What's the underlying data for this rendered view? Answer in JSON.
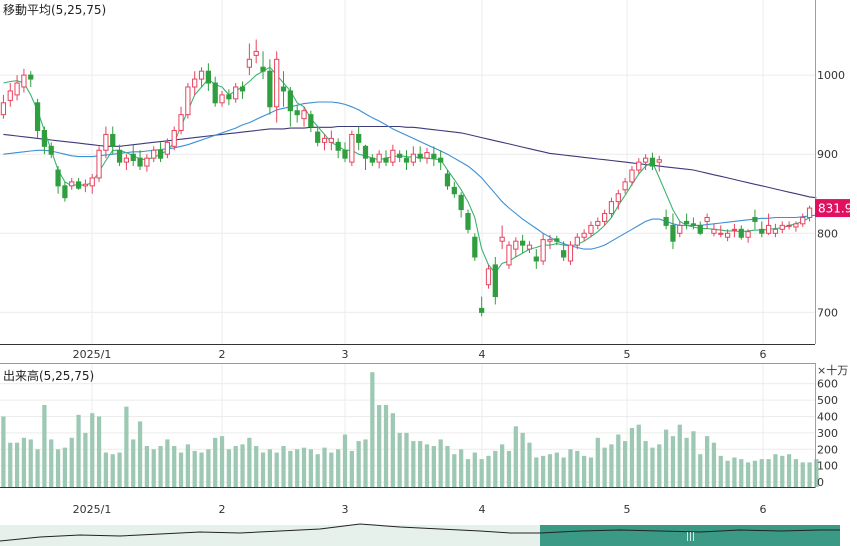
{
  "chart_data": [
    {
      "type": "candlestick",
      "title": "移動平均(5,25,75)",
      "x_tick_labels": [
        "2025/1",
        "2",
        "3",
        "4",
        "5",
        "6"
      ],
      "y_tick_labels": [
        "1000",
        "900",
        "800",
        "700"
      ],
      "ylim": [
        660,
        1095
      ],
      "grid": true,
      "last_price_label": "831.9",
      "colors": {
        "up": "#e8425e",
        "down": "#2e9e3e",
        "ma5": "#3cb371",
        "ma25": "#3a8fd8",
        "ma75": "#3d3a7a",
        "price_tag": "#e0115f"
      },
      "ohlc": [
        [
          950,
          975,
          945,
          965
        ],
        [
          968,
          990,
          960,
          980
        ],
        [
          975,
          1000,
          968,
          990
        ],
        [
          985,
          1008,
          978,
          1000
        ],
        [
          1000,
          1005,
          985,
          995
        ],
        [
          965,
          970,
          920,
          930
        ],
        [
          930,
          935,
          900,
          910
        ],
        [
          910,
          915,
          895,
          900
        ],
        [
          880,
          885,
          850,
          860
        ],
        [
          860,
          865,
          840,
          845
        ],
        [
          860,
          870,
          855,
          865
        ],
        [
          865,
          870,
          855,
          857
        ],
        [
          860,
          868,
          852,
          862
        ],
        [
          860,
          875,
          850,
          870
        ],
        [
          870,
          910,
          865,
          905
        ],
        [
          905,
          935,
          895,
          925
        ],
        [
          925,
          935,
          900,
          910
        ],
        [
          905,
          912,
          885,
          890
        ],
        [
          890,
          900,
          880,
          895
        ],
        [
          900,
          912,
          885,
          892
        ],
        [
          895,
          905,
          880,
          885
        ],
        [
          885,
          900,
          878,
          895
        ],
        [
          895,
          910,
          890,
          905
        ],
        [
          905,
          915,
          890,
          895
        ],
        [
          900,
          920,
          895,
          915
        ],
        [
          910,
          935,
          905,
          930
        ],
        [
          930,
          960,
          925,
          950
        ],
        [
          950,
          990,
          945,
          985
        ],
        [
          985,
          1005,
          975,
          995
        ],
        [
          995,
          1010,
          985,
          1005
        ],
        [
          1005,
          1015,
          980,
          990
        ],
        [
          990,
          998,
          960,
          965
        ],
        [
          965,
          980,
          960,
          975
        ],
        [
          975,
          982,
          962,
          970
        ],
        [
          970,
          990,
          965,
          985
        ],
        [
          985,
          992,
          970,
          980
        ],
        [
          1010,
          1040,
          1000,
          1020
        ],
        [
          1025,
          1045,
          1015,
          1030
        ],
        [
          1010,
          1030,
          995,
          1005
        ],
        [
          1005,
          1020,
          950,
          960
        ],
        [
          960,
          1030,
          940,
          1020
        ],
        [
          985,
          1005,
          960,
          980
        ],
        [
          980,
          985,
          935,
          955
        ],
        [
          955,
          962,
          940,
          950
        ],
        [
          945,
          960,
          935,
          955
        ],
        [
          950,
          955,
          928,
          935
        ],
        [
          928,
          935,
          910,
          915
        ],
        [
          915,
          925,
          905,
          920
        ],
        [
          915,
          930,
          905,
          920
        ],
        [
          915,
          920,
          895,
          905
        ],
        [
          905,
          915,
          890,
          895
        ],
        [
          890,
          930,
          885,
          925
        ],
        [
          925,
          935,
          905,
          915
        ],
        [
          910,
          912,
          880,
          895
        ],
        [
          895,
          900,
          885,
          890
        ],
        [
          890,
          905,
          882,
          900
        ],
        [
          895,
          905,
          885,
          890
        ],
        [
          890,
          912,
          885,
          905
        ],
        [
          900,
          905,
          890,
          896
        ],
        [
          895,
          905,
          880,
          890
        ],
        [
          890,
          910,
          885,
          900
        ],
        [
          900,
          910,
          890,
          895
        ],
        [
          895,
          908,
          888,
          902
        ],
        [
          900,
          910,
          885,
          895
        ],
        [
          895,
          905,
          880,
          890
        ],
        [
          875,
          880,
          855,
          860
        ],
        [
          858,
          865,
          845,
          850
        ],
        [
          848,
          852,
          820,
          830
        ],
        [
          825,
          830,
          800,
          805
        ],
        [
          795,
          800,
          765,
          770
        ],
        [
          705,
          720,
          695,
          700
        ],
        [
          735,
          760,
          730,
          755
        ],
        [
          760,
          770,
          710,
          720
        ],
        [
          790,
          810,
          780,
          795
        ],
        [
          760,
          790,
          755,
          785
        ],
        [
          780,
          795,
          770,
          790
        ],
        [
          790,
          798,
          775,
          785
        ],
        [
          780,
          790,
          775,
          785
        ],
        [
          770,
          780,
          755,
          765
        ],
        [
          765,
          800,
          760,
          792
        ],
        [
          790,
          798,
          780,
          792
        ],
        [
          793,
          797,
          785,
          790
        ],
        [
          778,
          790,
          765,
          770
        ],
        [
          765,
          790,
          760,
          785
        ],
        [
          785,
          800,
          780,
          795
        ],
        [
          795,
          805,
          790,
          800
        ],
        [
          800,
          815,
          795,
          810
        ],
        [
          810,
          820,
          805,
          815
        ],
        [
          815,
          830,
          810,
          825
        ],
        [
          825,
          845,
          820,
          840
        ],
        [
          840,
          855,
          830,
          850
        ],
        [
          855,
          870,
          850,
          865
        ],
        [
          865,
          885,
          860,
          880
        ],
        [
          880,
          895,
          875,
          890
        ],
        [
          890,
          900,
          880,
          895
        ],
        [
          895,
          902,
          880,
          885
        ],
        [
          890,
          898,
          878,
          893
        ],
        [
          820,
          830,
          805,
          810
        ],
        [
          810,
          825,
          780,
          790
        ],
        [
          800,
          815,
          795,
          810
        ],
        [
          815,
          825,
          805,
          812
        ],
        [
          812,
          820,
          805,
          810
        ],
        [
          810,
          815,
          798,
          800
        ],
        [
          815,
          825,
          805,
          820
        ],
        [
          800,
          812,
          796,
          805
        ],
        [
          800,
          810,
          795,
          800
        ],
        [
          795,
          805,
          790,
          800
        ],
        [
          805,
          812,
          795,
          805
        ],
        [
          805,
          810,
          792,
          795
        ],
        [
          795,
          805,
          788,
          802
        ],
        [
          820,
          830,
          805,
          815
        ],
        [
          805,
          815,
          795,
          800
        ],
        [
          800,
          825,
          798,
          810
        ],
        [
          800,
          812,
          795,
          805
        ],
        [
          805,
          815,
          800,
          810
        ],
        [
          810,
          815,
          805,
          810
        ],
        [
          808,
          815,
          802,
          812
        ],
        [
          812,
          825,
          808,
          820
        ],
        [
          820,
          835,
          815,
          831.9
        ]
      ],
      "ma5": [
        990,
        992,
        993,
        990,
        975,
        955,
        930,
        905,
        880,
        865,
        860,
        862,
        860,
        865,
        878,
        892,
        905,
        905,
        902,
        898,
        894,
        893,
        896,
        900,
        905,
        915,
        935,
        955,
        975,
        985,
        995,
        988,
        985,
        975,
        980,
        985,
        992,
        1000,
        1005,
        1010,
        1000,
        990,
        980,
        965,
        960,
        945,
        935,
        925,
        915,
        910,
        905,
        905,
        900,
        898,
        895,
        893,
        895,
        897,
        898,
        897,
        896,
        896,
        895,
        894,
        893,
        880,
        868,
        855,
        840,
        820,
        780,
        760,
        750,
        762,
        765,
        770,
        775,
        780,
        782,
        785,
        785,
        787,
        785,
        784,
        786,
        790,
        796,
        802,
        810,
        820,
        835,
        848,
        862,
        875,
        885,
        890,
        870,
        850,
        830,
        815,
        810,
        808,
        806,
        806,
        805,
        804,
        803,
        803,
        802,
        803,
        804,
        804,
        805,
        806,
        807,
        810,
        812,
        815,
        820
      ],
      "ma25": [
        900,
        901,
        902,
        903,
        904,
        905,
        905,
        904,
        902,
        900,
        898,
        897,
        897,
        897,
        898,
        899,
        900,
        901,
        902,
        903,
        903,
        904,
        905,
        906,
        907,
        908,
        910,
        912,
        915,
        918,
        921,
        924,
        927,
        930,
        933,
        937,
        940,
        944,
        948,
        952,
        956,
        958,
        960,
        962,
        964,
        965,
        966,
        966,
        966,
        965,
        963,
        960,
        956,
        951,
        946,
        942,
        937,
        932,
        928,
        924,
        920,
        916,
        912,
        908,
        904,
        900,
        895,
        890,
        885,
        878,
        870,
        860,
        850,
        840,
        832,
        825,
        818,
        812,
        806,
        800,
        795,
        790,
        787,
        784,
        782,
        780,
        780,
        782,
        785,
        790,
        795,
        800,
        805,
        810,
        815,
        818,
        818,
        815,
        812,
        810,
        810,
        810,
        810,
        811,
        812,
        813,
        814,
        815,
        816,
        817,
        818,
        819,
        819,
        820,
        820,
        820,
        820,
        821,
        822,
        823
      ],
      "ma75": [
        925,
        924,
        923,
        922,
        921,
        920,
        919,
        918,
        917,
        916,
        915,
        914,
        913,
        912,
        911,
        910,
        910,
        910,
        911,
        912,
        913,
        914,
        915,
        916,
        917,
        918,
        919,
        920,
        921,
        922,
        923,
        924,
        925,
        926,
        927,
        928,
        929,
        930,
        931,
        932,
        932,
        932,
        933,
        933,
        933,
        934,
        934,
        934,
        934,
        935,
        935,
        935,
        935,
        935,
        935,
        935,
        935,
        935,
        935,
        934,
        934,
        933,
        932,
        931,
        930,
        929,
        928,
        927,
        925,
        923,
        921,
        919,
        917,
        915,
        913,
        911,
        909,
        907,
        905,
        903,
        901,
        900,
        899,
        898,
        897,
        896,
        895,
        894,
        893,
        892,
        891,
        890,
        889,
        888,
        887,
        886,
        885,
        884,
        883,
        882,
        881,
        880,
        878,
        876,
        874,
        872,
        870,
        868,
        866,
        864,
        862,
        860,
        858,
        856,
        854,
        852,
        850,
        848,
        846,
        845
      ]
    },
    {
      "type": "bar",
      "title": "出来高(5,25,75)",
      "unit_label": "×十万",
      "y_tick_labels": [
        "600",
        "500",
        "400",
        "300",
        "200",
        "100",
        "0"
      ],
      "ylim": [
        -30,
        720
      ],
      "bar_color": "#9cc8b4",
      "values": [
        400,
        240,
        240,
        270,
        260,
        200,
        470,
        260,
        200,
        210,
        270,
        410,
        300,
        420,
        400,
        180,
        170,
        180,
        460,
        260,
        370,
        220,
        200,
        220,
        260,
        220,
        180,
        230,
        190,
        180,
        200,
        270,
        280,
        200,
        220,
        230,
        270,
        220,
        180,
        200,
        180,
        220,
        190,
        200,
        210,
        200,
        170,
        210,
        180,
        200,
        290,
        190,
        250,
        260,
        670,
        470,
        470,
        420,
        300,
        300,
        250,
        250,
        230,
        220,
        260,
        220,
        170,
        200,
        140,
        180,
        140,
        160,
        190,
        230,
        190,
        340,
        300,
        240,
        150,
        160,
        170,
        180,
        150,
        200,
        190,
        160,
        150,
        270,
        210,
        230,
        290,
        250,
        330,
        350,
        250,
        210,
        230,
        320,
        280,
        350,
        270,
        310,
        170,
        280,
        240,
        160,
        130,
        150,
        140,
        120,
        130,
        140,
        140,
        170,
        160,
        170,
        140,
        120,
        120,
        140
      ]
    }
  ],
  "navigator": {
    "scroll_thumb_label": "|||"
  }
}
